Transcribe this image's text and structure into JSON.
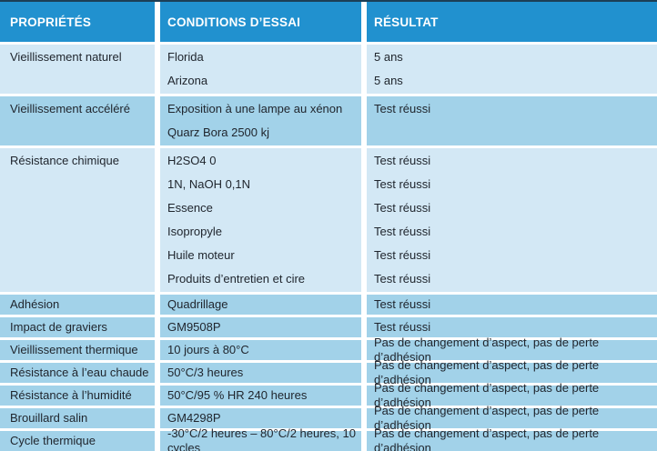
{
  "table": {
    "columns": [
      {
        "label": "PROPRIÉTÉS"
      },
      {
        "label": "CONDITIONS D’ESSAI"
      },
      {
        "label": "RÉSULTAT"
      }
    ],
    "rows": [
      {
        "property": "Vieillissement naturel",
        "conditions": [
          "Florida",
          "Arizona"
        ],
        "results": [
          "5 ans",
          "5 ans"
        ],
        "tone": "light"
      },
      {
        "property": "Vieillissement accéléré",
        "conditions": [
          "Exposition à une lampe au xénon",
          "Quarz Bora 2500 kj"
        ],
        "results": [
          "Test réussi"
        ],
        "tone": "dark"
      },
      {
        "property": "Résistance chimique",
        "conditions": [
          "H2SO4 0",
          "1N, NaOH 0,1N",
          "Essence",
          "Isopropyle",
          "Huile moteur",
          "Produits d’entretien et cire"
        ],
        "results": [
          "Test réussi",
          "Test réussi",
          "Test réussi",
          "Test réussi",
          "Test réussi",
          "Test réussi"
        ],
        "tone": "light"
      },
      {
        "property": "Adhésion",
        "conditions": [
          "Quadrillage"
        ],
        "results": [
          "Test réussi"
        ],
        "tone": "dark"
      },
      {
        "property": "Impact de graviers",
        "conditions": [
          "GM9508P"
        ],
        "results": [
          "Test réussi"
        ],
        "tone": "dark"
      },
      {
        "property": "Vieillissement thermique",
        "conditions": [
          "10 jours à 80°C"
        ],
        "results": [
          "Pas de changement d’aspect, pas de perte d’adhésion"
        ],
        "tone": "dark"
      },
      {
        "property": "Résistance à l’eau chaude",
        "conditions": [
          "50°C/3 heures"
        ],
        "results": [
          "Pas de changement d’aspect, pas de perte d’adhésion"
        ],
        "tone": "dark"
      },
      {
        "property": "Résistance à l’humidité",
        "conditions": [
          "50°C/95 % HR 240 heures"
        ],
        "results": [
          "Pas de changement d’aspect, pas de perte d’adhésion"
        ],
        "tone": "dark"
      },
      {
        "property": "Brouillard salin",
        "conditions": [
          "GM4298P"
        ],
        "results": [
          "Pas de changement d’aspect, pas de perte d’adhésion"
        ],
        "tone": "dark"
      },
      {
        "property": "Cycle thermique",
        "conditions": [
          "-30°C/2 heures – 80°C/2 heures, 10 cycles"
        ],
        "results": [
          "Pas de changement d’aspect, pas de perte d’adhésion"
        ],
        "tone": "dark"
      }
    ],
    "colors": {
      "header_bg": "#2191cf",
      "header_text": "#ffffff",
      "row_light": "#d3e8f5",
      "row_dark": "#a2d2e9",
      "top_border": "#1c3f56",
      "text": "#20262e"
    }
  }
}
